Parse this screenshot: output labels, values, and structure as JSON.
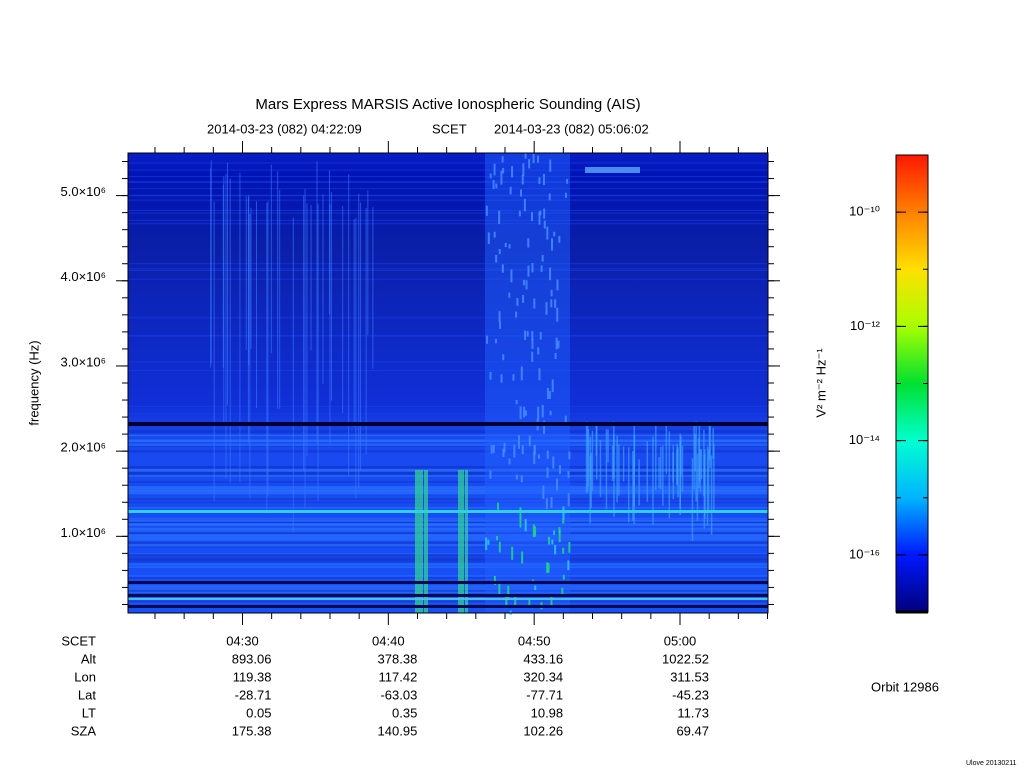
{
  "chart_data": {
    "type": "spectrogram",
    "title": "Mars Express MARSIS Active Ionospheric Sounding (AIS)",
    "start_time": "2014-03-23 (082) 04:22:09",
    "time_label": "SCET",
    "end_time": "2014-03-23 (082) 05:06:02",
    "y_label": "frequency (Hz)",
    "ylim": [
      100000,
      5500000
    ],
    "yticks": [
      {
        "value": 1000000,
        "label": "1.0×10⁶"
      },
      {
        "value": 2000000,
        "label": "2.0×10⁶"
      },
      {
        "value": 3000000,
        "label": "3.0×10⁶"
      },
      {
        "value": 4000000,
        "label": "4.0×10⁶"
      },
      {
        "value": 5000000,
        "label": "5.0×10⁶"
      }
    ],
    "xticks": [
      "04:30",
      "04:40",
      "04:50",
      "05:00"
    ],
    "colorbar": {
      "label": "V² m⁻² Hz⁻¹",
      "log": true,
      "zlim": [
        1e-17,
        1e-09
      ],
      "ticks": [
        {
          "value": 1e-16,
          "label": "10⁻¹⁶"
        },
        {
          "value": 1e-14,
          "label": "10⁻¹⁴"
        },
        {
          "value": 1e-12,
          "label": "10⁻¹²"
        },
        {
          "value": 1e-10,
          "label": "10⁻¹⁰"
        }
      ],
      "colors": [
        "#00007a",
        "#0018ff",
        "#00b4ff",
        "#00ffd0",
        "#00e030",
        "#a8ff00",
        "#ffe000",
        "#ff8000",
        "#ff1800"
      ]
    },
    "ephemeris": {
      "row_labels": [
        "Alt",
        "Lon",
        "Lat",
        "LT",
        "SZA"
      ],
      "rows": [
        [
          893.06,
          378.38,
          433.16,
          1022.52
        ],
        [
          119.38,
          117.42,
          320.34,
          311.53
        ],
        [
          -28.71,
          -63.03,
          -77.71,
          -45.23
        ],
        [
          0.05,
          0.35,
          10.98,
          11.73
        ],
        [
          175.38,
          140.95,
          102.26,
          69.47
        ]
      ]
    },
    "orbit": "Orbit 12986",
    "credit": "Ulove 20130211"
  }
}
